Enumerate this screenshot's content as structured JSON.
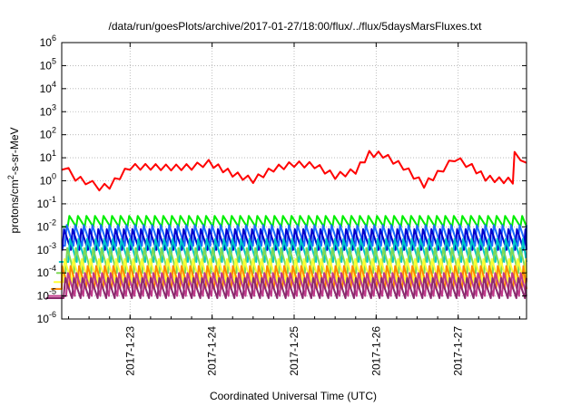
{
  "chart_data": {
    "type": "line",
    "title": "/data/run/goesPlots/archive/2017-01-27/18:00/flux/../flux/5daysMarsFluxes.txt",
    "xlabel": "Coordinated Universal Time (UTC)",
    "ylabel": {
      "prefix": "protons/cm",
      "sup": "2",
      "suffix": "-s-sr-MeV"
    },
    "y_scale": "log",
    "ylim_exp": [
      -6,
      6
    ],
    "y_tick_labels": [
      {
        "base": "10",
        "exp": "-6"
      },
      {
        "base": "10",
        "exp": "-5"
      },
      {
        "base": "10",
        "exp": "-4"
      },
      {
        "base": "10",
        "exp": "-3"
      },
      {
        "base": "10",
        "exp": "-2"
      },
      {
        "base": "10",
        "exp": "-1"
      },
      {
        "base": "10",
        "exp": "0"
      },
      {
        "base": "10",
        "exp": "1"
      },
      {
        "base": "10",
        "exp": "2"
      },
      {
        "base": "10",
        "exp": "3"
      },
      {
        "base": "10",
        "exp": "4"
      },
      {
        "base": "10",
        "exp": "5"
      },
      {
        "base": "10",
        "exp": "6"
      }
    ],
    "x_start": "2017-01-22 04:00",
    "x_end": "2017-01-27 20:00",
    "x_ticks": [
      "2017-1-23",
      "2017-1-24",
      "2017-1-25",
      "2017-1-26",
      "2017-1-27"
    ],
    "grid": true,
    "legend": "none",
    "sawtooth_period_hours": 2.5,
    "series": [
      {
        "color": "#ff0000",
        "points": [
          [
            "2017-01-22 04:00",
            3.0
          ],
          [
            "2017-01-22 06:00",
            2.0
          ],
          [
            "2017-01-22 08:00",
            1.0
          ],
          [
            "2017-01-22 11:00",
            0.7
          ],
          [
            "2017-01-22 13:00",
            0.55
          ],
          [
            "2017-01-22 15:00",
            0.38
          ],
          [
            "2017-01-22 18:00",
            0.45
          ],
          [
            "2017-01-23 00:00",
            3.0
          ],
          [
            "2017-01-23 06:00",
            3.0
          ],
          [
            "2017-01-23 12:00",
            2.8
          ],
          [
            "2017-01-23 18:00",
            3.0
          ],
          [
            "2017-01-23 23:00",
            4.5
          ],
          [
            "2017-01-24 06:00",
            1.5
          ],
          [
            "2017-01-24 12:00",
            0.8
          ],
          [
            "2017-01-24 18:00",
            2.5
          ],
          [
            "2017-01-25 00:00",
            4.0
          ],
          [
            "2017-01-25 06:00",
            3.5
          ],
          [
            "2017-01-25 12:00",
            1.2
          ],
          [
            "2017-01-25 18:00",
            2.0
          ],
          [
            "2017-01-25 22:00",
            11.0
          ],
          [
            "2017-01-26 02:00",
            10.0
          ],
          [
            "2017-01-26 08:00",
            3.0
          ],
          [
            "2017-01-26 14:00",
            0.5
          ],
          [
            "2017-01-26 18:00",
            1.5
          ],
          [
            "2017-01-26 23:00",
            7.0
          ],
          [
            "2017-01-27 04:00",
            3.0
          ],
          [
            "2017-01-27 08:00",
            1.0
          ],
          [
            "2017-01-27 12:00",
            0.8
          ],
          [
            "2017-01-27 16:00",
            0.75
          ],
          [
            "2017-01-27 16:30",
            10.0
          ],
          [
            "2017-01-27 20:00",
            6.0
          ]
        ],
        "zigzag": 1.8
      },
      {
        "color": "#00ee00",
        "sawtooth": [
          0.01,
          0.03
        ]
      },
      {
        "color": "#1c6bff",
        "sawtooth": [
          0.0015,
          0.012
        ]
      },
      {
        "color": "#0000cc",
        "sawtooth": [
          0.001,
          0.008
        ]
      },
      {
        "color": "#00c8c8",
        "sawtooth": [
          0.0003,
          0.003
        ]
      },
      {
        "color": "#7ed957",
        "sawtooth": [
          0.0001,
          0.0012
        ]
      },
      {
        "color": "#ffff33",
        "sawtooth": [
          4e-05,
          0.0004
        ]
      },
      {
        "color": "#ff8800",
        "sawtooth": [
          2e-05,
          0.0002
        ]
      },
      {
        "color": "#c03a8a",
        "sawtooth": [
          1e-05,
          0.0001
        ]
      },
      {
        "color": "#8b2a6e",
        "sawtooth": [
          8e-06,
          6e-05
        ]
      }
    ]
  }
}
